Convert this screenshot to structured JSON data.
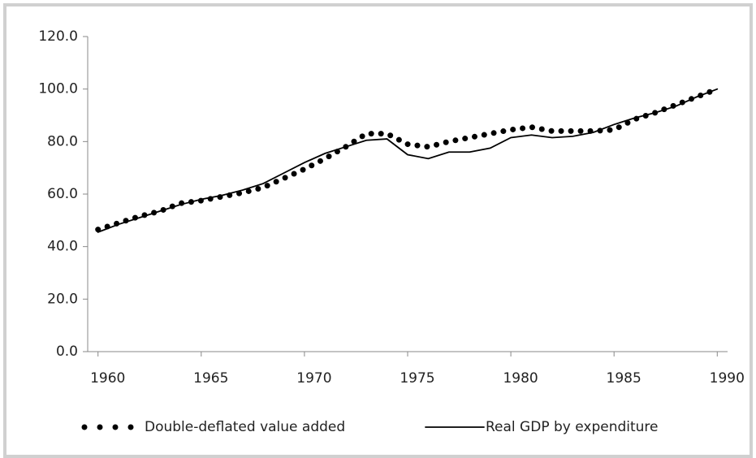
{
  "chart_data": {
    "type": "line",
    "x": [
      1960,
      1961,
      1962,
      1963,
      1964,
      1965,
      1966,
      1967,
      1968,
      1969,
      1970,
      1971,
      1972,
      1973,
      1974,
      1975,
      1976,
      1977,
      1978,
      1979,
      1980,
      1981,
      1982,
      1983,
      1984,
      1985,
      1986,
      1987,
      1988,
      1989,
      1990
    ],
    "series": [
      {
        "name": "Double-deflated value added",
        "color": "#000000",
        "style": "dotted",
        "values": [
          46.5,
          49,
          51.5,
          53.5,
          56.5,
          57.5,
          59,
          60.5,
          62.5,
          66,
          69.5,
          73.5,
          78,
          83,
          83,
          79,
          78,
          80,
          81.5,
          83,
          84.5,
          85.5,
          84,
          84,
          84,
          84.5,
          88.5,
          91,
          94,
          97,
          100
        ]
      },
      {
        "name": "Real GDP by expenditure",
        "color": "#000000",
        "style": "solid",
        "values": [
          45.5,
          48.5,
          51,
          53.5,
          56,
          58,
          59.5,
          61.5,
          64,
          68,
          72,
          75.5,
          78,
          80.5,
          81,
          75,
          73.5,
          76,
          76,
          77.5,
          81.5,
          82.5,
          81.5,
          82,
          83.5,
          86.5,
          89,
          91,
          93.5,
          97,
          100
        ]
      }
    ],
    "xlim": [
      1959.5,
      1990.5
    ],
    "xticks": [
      1960,
      1965,
      1970,
      1975,
      1980,
      1985,
      1990
    ],
    "ylim": [
      0,
      120
    ],
    "yticks": [
      {
        "value": 0,
        "label": "0.0"
      },
      {
        "value": 20,
        "label": "20.0"
      },
      {
        "value": 40,
        "label": "40.0"
      },
      {
        "value": 60,
        "label": "60.0"
      },
      {
        "value": 80,
        "label": "80.0"
      },
      {
        "value": 100,
        "label": "100.0"
      },
      {
        "value": 120,
        "label": "120.0"
      }
    ],
    "legend": "bottom"
  }
}
